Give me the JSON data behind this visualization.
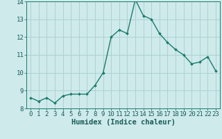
{
  "x": [
    0,
    1,
    2,
    3,
    4,
    5,
    6,
    7,
    8,
    9,
    10,
    11,
    12,
    13,
    14,
    15,
    16,
    17,
    18,
    19,
    20,
    21,
    22,
    23
  ],
  "y": [
    8.6,
    8.4,
    8.6,
    8.3,
    8.7,
    8.8,
    8.8,
    8.8,
    9.3,
    10.0,
    12.0,
    12.4,
    12.2,
    14.1,
    13.2,
    13.0,
    12.2,
    11.7,
    11.3,
    11.0,
    10.5,
    10.6,
    10.9,
    10.1
  ],
  "line_color": "#1a7a6a",
  "marker": "D",
  "marker_size": 2.0,
  "bg_color": "#ceeaea",
  "grid_color": "#aacece",
  "xlabel": "Humidex (Indice chaleur)",
  "ylim": [
    8,
    14
  ],
  "xlim_min": -0.5,
  "xlim_max": 23.5,
  "yticks": [
    8,
    9,
    10,
    11,
    12,
    13,
    14
  ],
  "xticks": [
    0,
    1,
    2,
    3,
    4,
    5,
    6,
    7,
    8,
    9,
    10,
    11,
    12,
    13,
    14,
    15,
    16,
    17,
    18,
    19,
    20,
    21,
    22,
    23
  ],
  "font_color": "#1a5a5a",
  "line_width": 1.0,
  "tick_fontsize": 6.5,
  "xlabel_fontsize": 7.5
}
